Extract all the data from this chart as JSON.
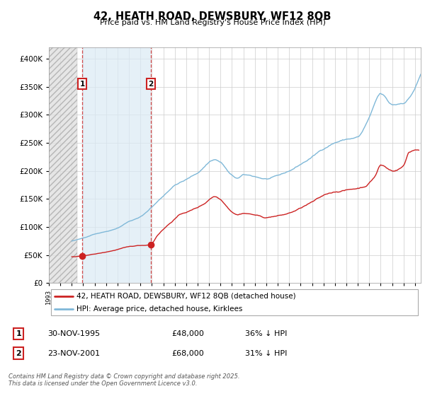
{
  "title": "42, HEATH ROAD, DEWSBURY, WF12 8QB",
  "subtitle": "Price paid vs. HM Land Registry's House Price Index (HPI)",
  "legend_line1": "42, HEATH ROAD, DEWSBURY, WF12 8QB (detached house)",
  "legend_line2": "HPI: Average price, detached house, Kirklees",
  "footer": "Contains HM Land Registry data © Crown copyright and database right 2025.\nThis data is licensed under the Open Government Licence v3.0.",
  "transactions": [
    {
      "date": 1995.92,
      "price": 48000,
      "label": "1",
      "info": "30-NOV-1995",
      "amount": "£48,000",
      "hpi_diff": "36% ↓ HPI"
    },
    {
      "date": 2001.9,
      "price": 68000,
      "label": "2",
      "info": "23-NOV-2001",
      "amount": "£68,000",
      "hpi_diff": "31% ↓ HPI"
    }
  ],
  "hpi_color": "#7fb8d8",
  "price_color": "#cc2222",
  "background_color": "#ffffff",
  "grid_color": "#cccccc",
  "plot_bg_color": "#ffffff",
  "ylim": [
    0,
    420000
  ],
  "xlim_start": 1993.0,
  "xlim_end": 2025.5,
  "hatch_end": 1995.5,
  "blue_shade_start": 1995.92,
  "blue_shade_end": 2001.9
}
